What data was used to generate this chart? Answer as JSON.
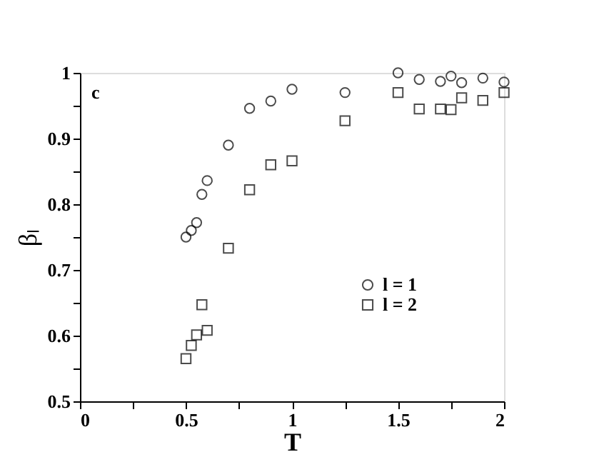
{
  "chart_data": {
    "type": "scatter",
    "xlabel": "T",
    "ylabel": "βₗ",
    "annotations": [
      "c"
    ],
    "xlim": [
      0,
      2
    ],
    "ylim": [
      0.5,
      1
    ],
    "xticks": [
      0,
      {
        "value": 0.25,
        "label": null
      },
      0.5,
      {
        "value": 0.75,
        "label": null
      },
      1,
      {
        "value": 1.25,
        "label": null
      },
      1.5,
      {
        "value": 1.75,
        "label": null
      },
      2
    ],
    "yticks": [
      0.5,
      {
        "value": 0.55,
        "label": null
      },
      0.6,
      {
        "value": 0.65,
        "label": null
      },
      0.7,
      {
        "value": 0.75,
        "label": null
      },
      0.8,
      {
        "value": 0.85,
        "label": null
      },
      0.9,
      {
        "value": 0.95,
        "label": null
      },
      1
    ],
    "grid": false,
    "legend": "bottom right",
    "series": [
      {
        "name": "l = 1",
        "color": "#000000",
        "marker": "circle",
        "x": [
          0.5,
          0.525,
          0.55,
          0.575,
          0.6,
          0.7,
          0.8,
          0.9,
          1.0,
          1.25,
          1.5,
          1.6,
          1.7,
          1.75,
          1.8,
          1.9,
          2.0
        ],
        "values": [
          0.75,
          0.76,
          0.772,
          0.815,
          0.836,
          0.89,
          0.946,
          0.957,
          0.975,
          0.97,
          1.0,
          0.99,
          0.987,
          0.995,
          0.985,
          0.992,
          0.986
        ]
      },
      {
        "name": "l = 2",
        "color": "#000000",
        "marker": "square",
        "x": [
          0.5,
          0.525,
          0.55,
          0.575,
          0.6,
          0.7,
          0.8,
          0.9,
          1.0,
          1.25,
          1.5,
          1.6,
          1.7,
          1.75,
          1.8,
          1.9,
          2.0
        ],
        "values": [
          0.565,
          0.585,
          0.601,
          0.647,
          0.608,
          0.733,
          0.822,
          0.86,
          0.866,
          0.927,
          0.97,
          0.945,
          0.945,
          0.944,
          0.962,
          0.958,
          0.97
        ]
      }
    ]
  }
}
